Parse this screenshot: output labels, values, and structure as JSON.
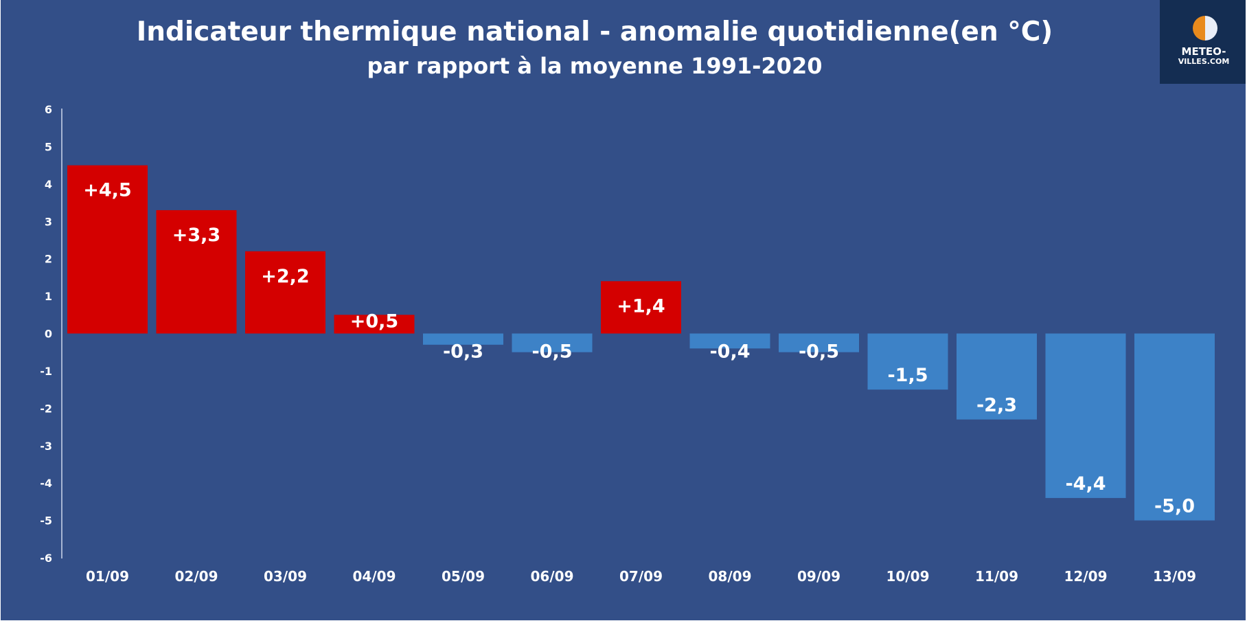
{
  "logo": {
    "name": "METEO-",
    "name_sub": "VILLES.COM",
    "colors": {
      "left": "#e88a1d",
      "right": "#e9eef8"
    }
  },
  "colors": {
    "background": "#334f88",
    "positive_bar": "#d40000",
    "negative_bar": "#3d82c7",
    "axis": "#ffffff",
    "text": "#ffffff"
  },
  "chart_data": {
    "type": "bar",
    "title": "Indicateur thermique national - anomalie quotidienne(en °C)",
    "subtitle": "par rapport à la moyenne 1991-2020",
    "categories": [
      "01/09",
      "02/09",
      "03/09",
      "04/09",
      "05/09",
      "06/09",
      "07/09",
      "08/09",
      "09/09",
      "10/09",
      "11/09",
      "12/09",
      "13/09"
    ],
    "values": [
      4.5,
      3.3,
      2.2,
      0.5,
      -0.3,
      -0.5,
      1.4,
      -0.4,
      -0.5,
      -1.5,
      -2.3,
      -4.4,
      -5.0
    ],
    "data_labels": [
      "+4,5",
      "+3,3",
      "+2,2",
      "+0,5",
      "-0,3",
      "-0,5",
      "+1,4",
      "-0,4",
      "-0,5",
      "-1,5",
      "-2,3",
      "-4,4",
      "-5,0"
    ],
    "y_ticks": [
      "6",
      "5",
      "4",
      "3",
      "2",
      "1",
      "0",
      "-1",
      "-2",
      "-3",
      "-4",
      "-5",
      "-6"
    ],
    "ylim": [
      -6,
      6
    ],
    "grid": false,
    "legend": "none"
  }
}
